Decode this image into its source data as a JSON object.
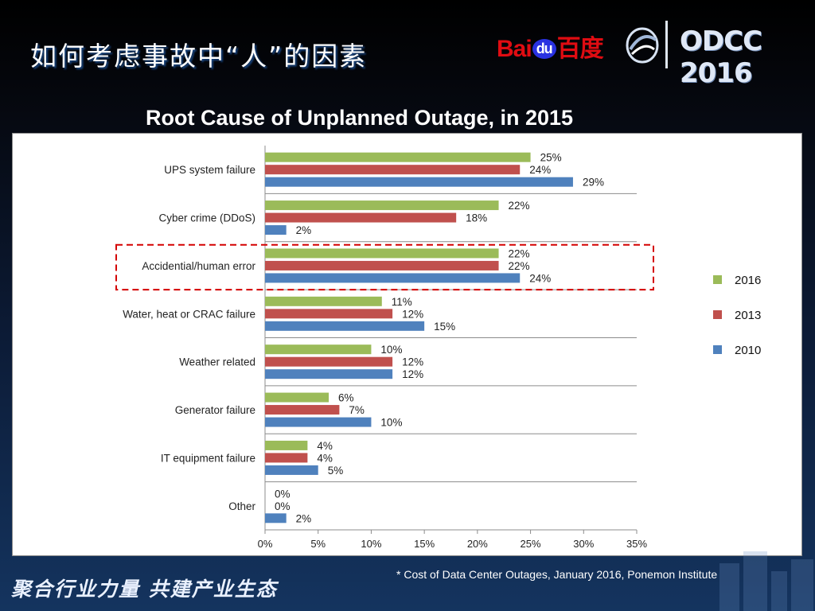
{
  "slide": {
    "title": "如何考虑事故中“人”的因素",
    "slogan": "聚合行业力量  共建产业生态",
    "footnote": "* Cost of Data Center Outages, January 2016, Ponemon Institute"
  },
  "logos": {
    "baidu_left": "Bai",
    "baidu_du": "du",
    "baidu_cn": "百度",
    "odcc": "ODCC 2016"
  },
  "colors": {
    "s2016": "#9bbb59",
    "s2013": "#c0504d",
    "s2010": "#4f81bd",
    "highlight": "#d40000"
  },
  "chart_data": {
    "type": "bar",
    "orientation": "horizontal",
    "title": "Root Cause of Unplanned Outage, in 2015",
    "categories": [
      "UPS system failure",
      "Cyber crime (DDoS)",
      "Accidential/human error",
      "Water, heat or CRAC failure",
      "Weather related",
      "Generator failure",
      "IT equipment failure",
      "Other"
    ],
    "series": [
      {
        "name": "2016",
        "values": [
          25,
          22,
          22,
          11,
          10,
          6,
          4,
          0
        ]
      },
      {
        "name": "2013",
        "values": [
          24,
          18,
          22,
          12,
          12,
          7,
          4,
          0
        ]
      },
      {
        "name": "2010",
        "values": [
          29,
          2,
          24,
          15,
          12,
          10,
          5,
          2
        ]
      }
    ],
    "value_labels": [
      [
        "25%",
        "24%",
        "29%"
      ],
      [
        "22%",
        "18%",
        "2%"
      ],
      [
        "22%",
        "22%",
        "24%"
      ],
      [
        "11%",
        "12%",
        "15%"
      ],
      [
        "10%",
        "12%",
        "12%"
      ],
      [
        "6%",
        "7%",
        "10%"
      ],
      [
        "4%",
        "4%",
        "5%"
      ],
      [
        "0%",
        "0%",
        "2%"
      ]
    ],
    "x_ticks": [
      0,
      5,
      10,
      15,
      20,
      25,
      30,
      35
    ],
    "x_tick_labels": [
      "0%",
      "5%",
      "10%",
      "15%",
      "20%",
      "25%",
      "30%",
      "35%"
    ],
    "xlim": [
      0,
      35
    ],
    "gridlines": "horizontal separators between categories",
    "legend_position": "right",
    "highlighted_category": "Accidential/human error"
  }
}
